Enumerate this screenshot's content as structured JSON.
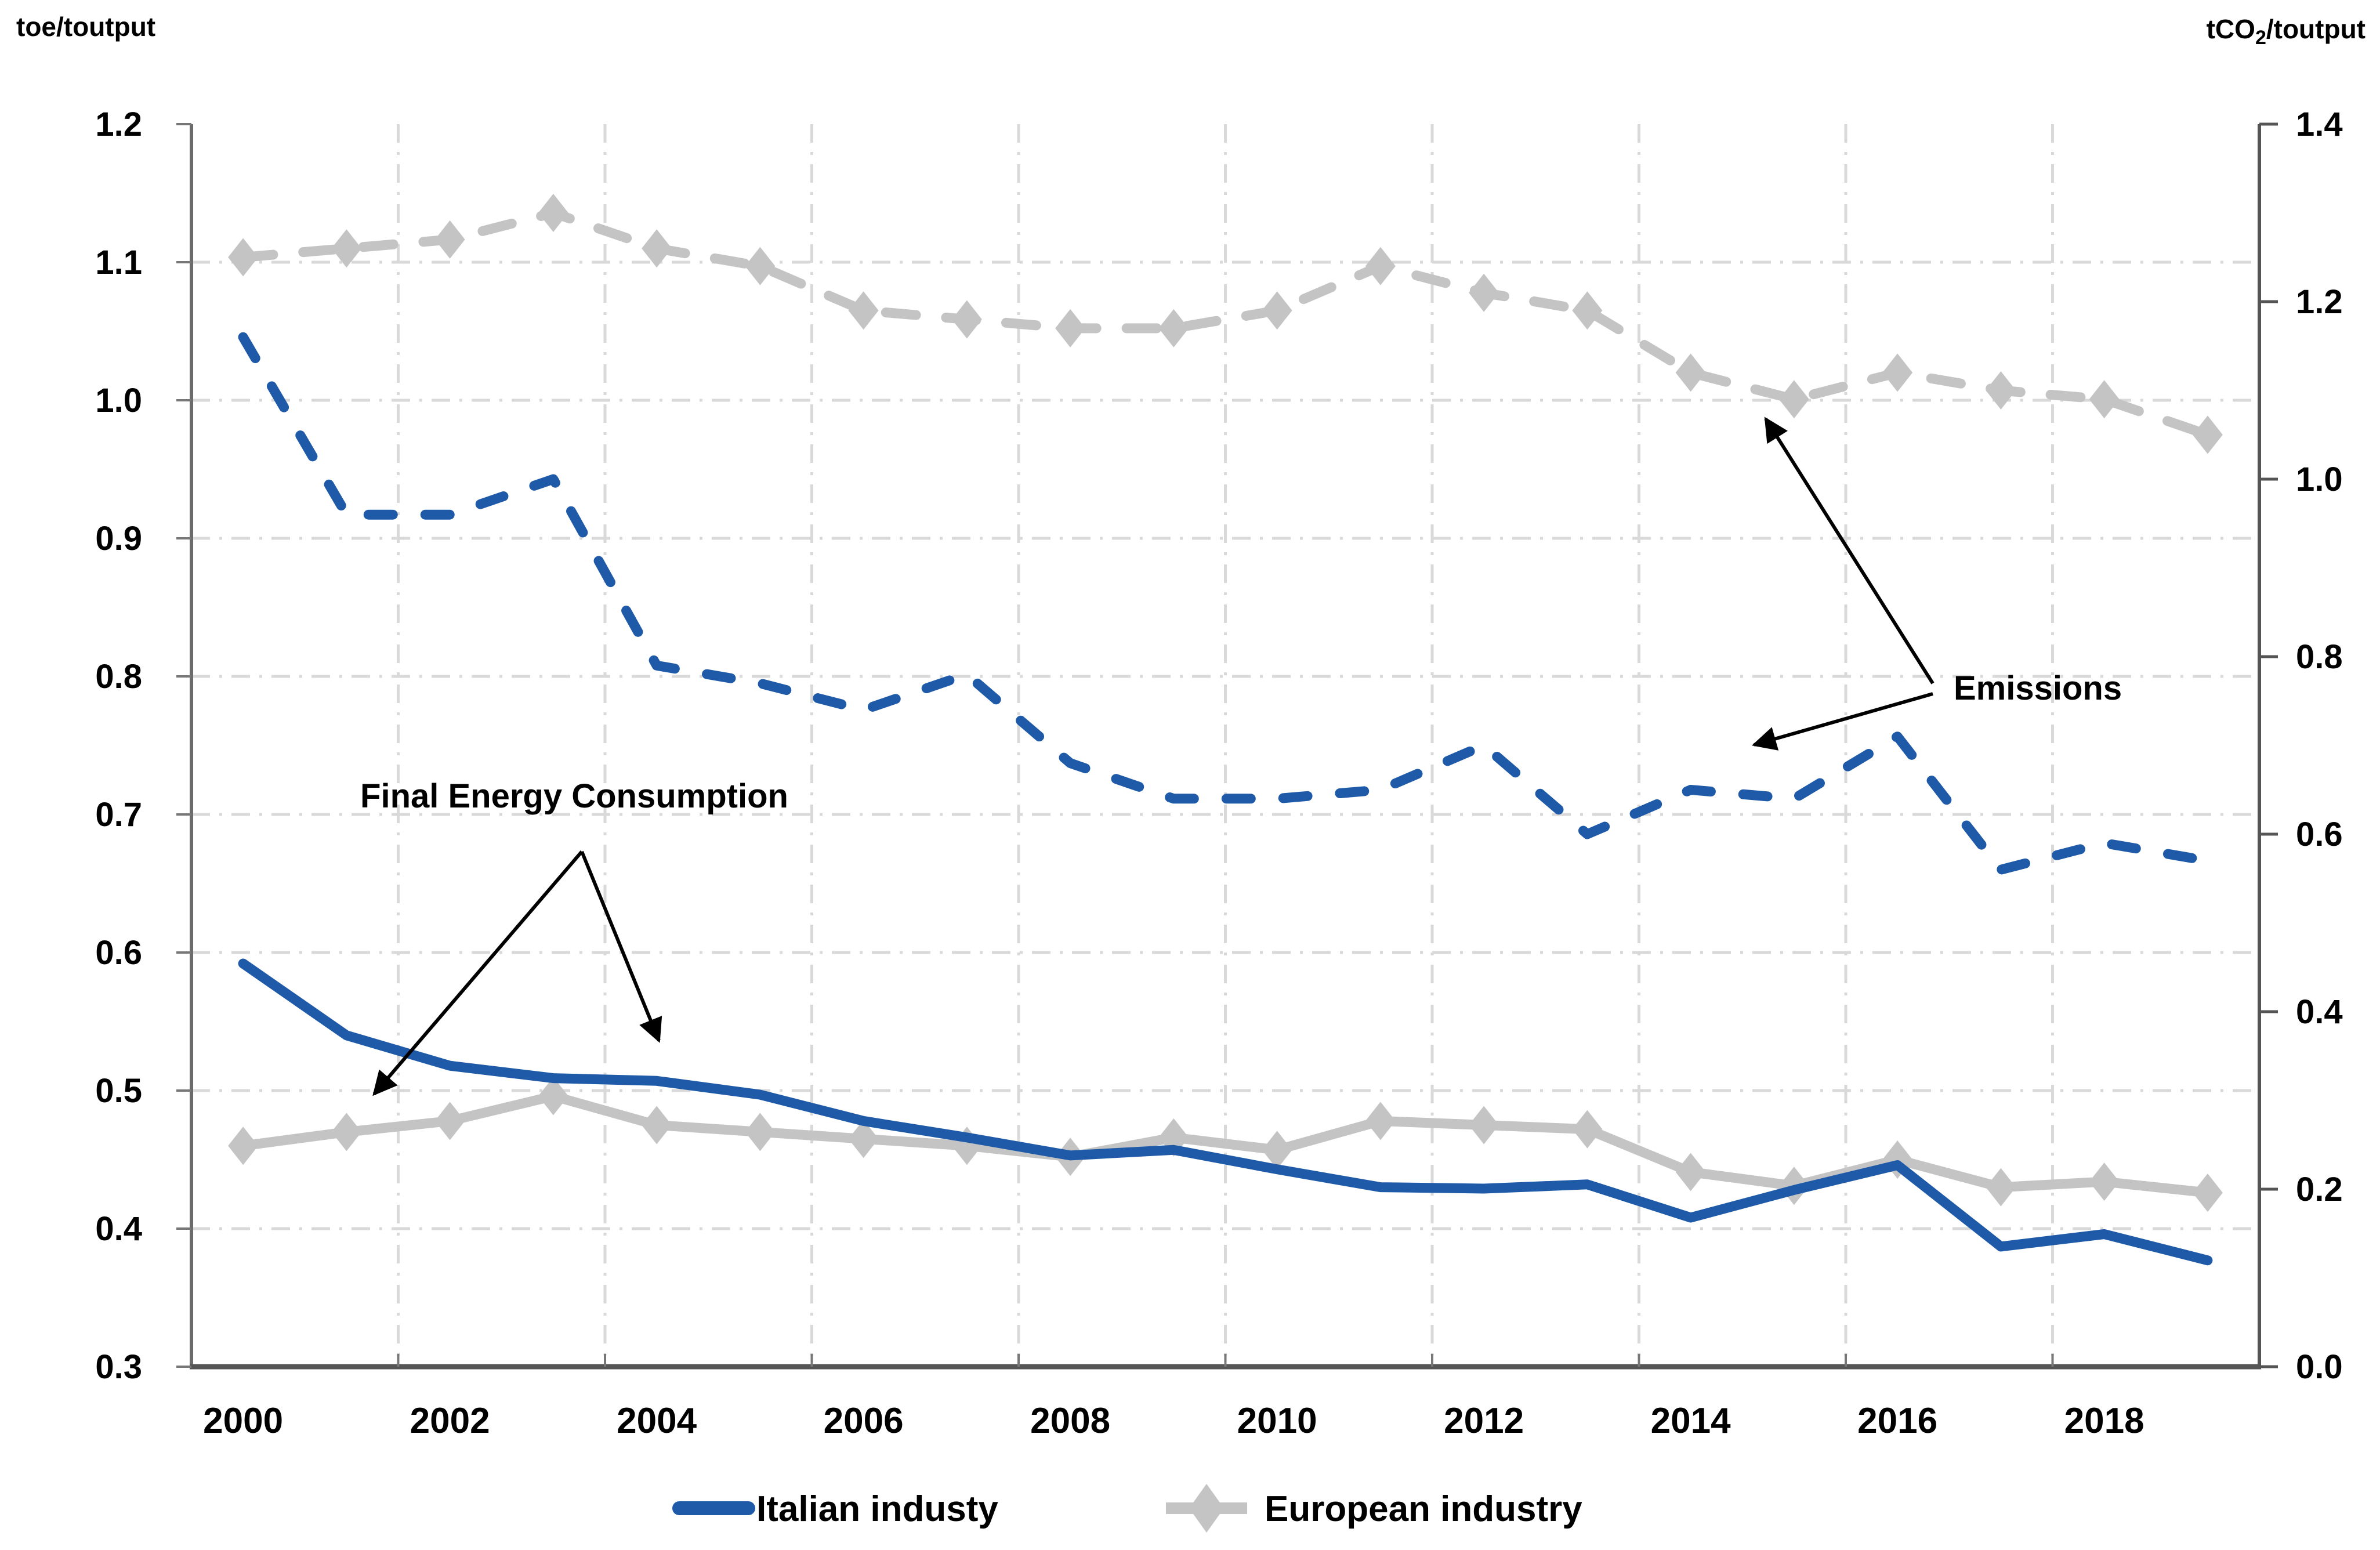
{
  "chart_data": {
    "type": "line",
    "title": "",
    "x_years": [
      2000,
      2001,
      2002,
      2003,
      2004,
      2005,
      2006,
      2007,
      2008,
      2009,
      2010,
      2011,
      2012,
      2013,
      2014,
      2015,
      2016,
      2017,
      2018,
      2019
    ],
    "x_tick_labels": [
      "2000",
      "2002",
      "2004",
      "2006",
      "2008",
      "2010",
      "2012",
      "2014",
      "2016",
      "2018"
    ],
    "left_axis": {
      "title": "toe/toutput",
      "min": 0.3,
      "max": 1.2,
      "tick_labels": [
        "1.2",
        "1.1",
        "1.0",
        "0.9",
        "0.8",
        "0.7",
        "0.6",
        "0.5",
        "0.4",
        "0.3"
      ]
    },
    "right_axis": {
      "title_parts": {
        "main": "tCO",
        "sub": "2",
        "rest": "/toutput"
      },
      "min": 0.0,
      "max": 1.4,
      "tick_labels": [
        "1.4",
        "1.2",
        "1.0",
        "0.8",
        "0.6",
        "0.4",
        "0.2",
        "0.0"
      ]
    },
    "grid": {
      "style": "dash-dot",
      "color": "#d9d9d9",
      "horizontal": true,
      "vertical": true
    },
    "legend_position": "bottom-center",
    "series": [
      {
        "id": "european-emissions",
        "legend": "European industry",
        "group": "Emissions",
        "axis": "right",
        "line": "dashed",
        "marker": "diamond",
        "color": "#c4c4c4",
        "values": [
          1.25,
          1.26,
          1.27,
          1.3,
          1.26,
          1.24,
          1.19,
          1.18,
          1.17,
          1.17,
          1.19,
          1.24,
          1.21,
          1.19,
          1.12,
          1.09,
          1.12,
          1.1,
          1.09,
          1.05
        ]
      },
      {
        "id": "italian-emissions",
        "legend": "Italian industy",
        "group": "Emissions",
        "axis": "right",
        "line": "dashed",
        "marker": "none",
        "color": "#1e5aa8",
        "values": [
          1.16,
          0.96,
          0.96,
          1.0,
          0.79,
          0.77,
          0.74,
          0.78,
          0.68,
          0.64,
          0.64,
          0.65,
          0.7,
          0.6,
          0.65,
          0.64,
          0.71,
          0.56,
          0.59,
          0.57
        ]
      },
      {
        "id": "european-consumption",
        "legend": "European industry",
        "group": "Final Energy Consumption",
        "axis": "left",
        "line": "solid",
        "marker": "diamond",
        "color": "#c4c4c4",
        "values": [
          0.46,
          0.47,
          0.478,
          0.496,
          0.475,
          0.47,
          0.465,
          0.46,
          0.452,
          0.466,
          0.457,
          0.478,
          0.475,
          0.472,
          0.441,
          0.431,
          0.45,
          0.43,
          0.434,
          0.426
        ]
      },
      {
        "id": "italian-consumption",
        "legend": "Italian industy",
        "group": "Final Energy Consumption",
        "axis": "left",
        "line": "solid",
        "marker": "none",
        "color": "#1e5aa8",
        "values": [
          0.592,
          0.54,
          0.518,
          0.509,
          0.507,
          0.497,
          0.478,
          0.466,
          0.453,
          0.457,
          0.443,
          0.43,
          0.429,
          0.432,
          0.408,
          0.428,
          0.446,
          0.387,
          0.396,
          0.377
        ]
      }
    ],
    "annotations": [
      {
        "label": "Final Energy Consumption"
      },
      {
        "label": "Emissions"
      }
    ],
    "legend": [
      {
        "label": "Italian industy",
        "color": "#1e5aa8",
        "marker": "line"
      },
      {
        "label": "European industry",
        "color": "#c4c4c4",
        "marker": "diamond-line"
      }
    ]
  }
}
